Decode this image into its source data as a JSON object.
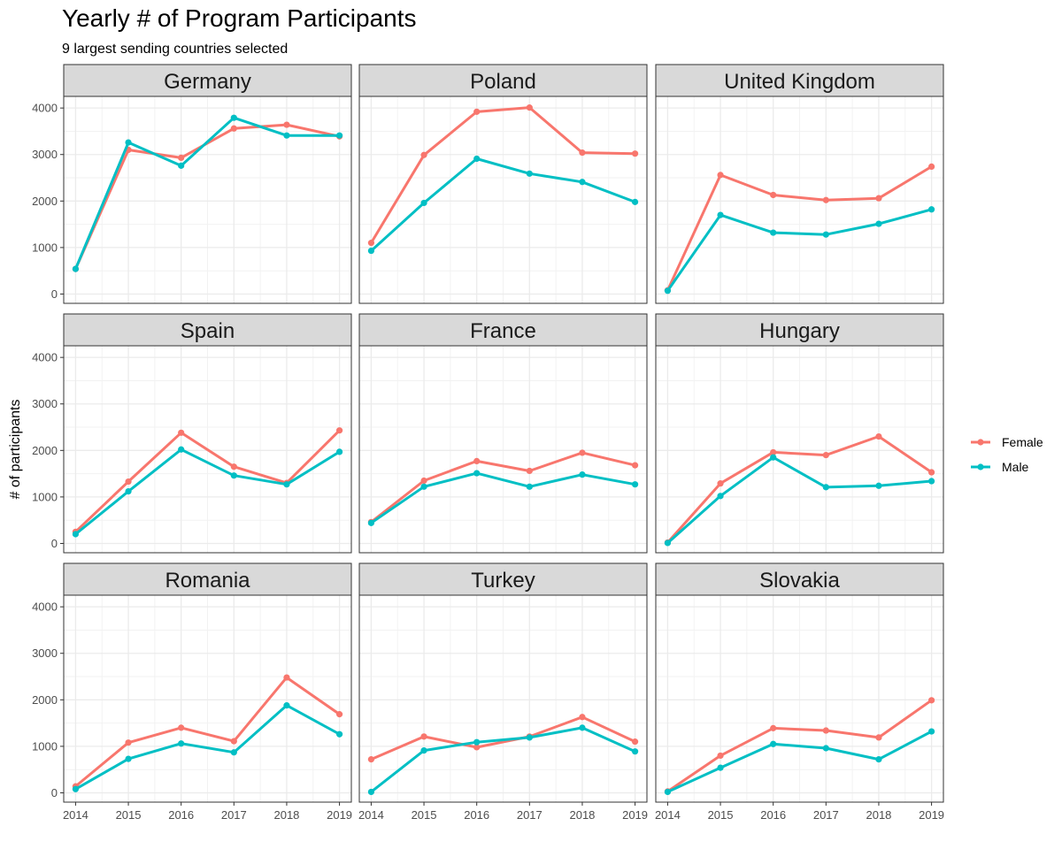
{
  "chart_data": {
    "type": "line",
    "title": "Yearly # of Program Participants",
    "subtitle": "9 largest sending countries selected",
    "xlabel": "",
    "ylabel": "# of participants",
    "x": [
      2014,
      2015,
      2016,
      2017,
      2018,
      2019
    ],
    "x_ticks": [
      "2014",
      "2015",
      "2016",
      "2017",
      "2018",
      "2019"
    ],
    "y_ticks": [
      0,
      1000,
      2000,
      3000,
      4000
    ],
    "ylim": [
      0,
      4250
    ],
    "grid": true,
    "legend": {
      "placement": "right",
      "entries": [
        {
          "name": "Female",
          "color": "#F8766D"
        },
        {
          "name": "Male",
          "color": "#00BFC4"
        }
      ]
    },
    "panels": [
      {
        "country": "Germany",
        "series": [
          {
            "name": "Female",
            "values": [
              540,
              3100,
              2930,
              3560,
              3640,
              3390
            ]
          },
          {
            "name": "Male",
            "values": [
              540,
              3260,
              2760,
              3790,
              3410,
              3410
            ]
          }
        ]
      },
      {
        "country": "Poland",
        "series": [
          {
            "name": "Female",
            "values": [
              1100,
              2990,
              3920,
              4010,
              3040,
              3020
            ]
          },
          {
            "name": "Male",
            "values": [
              930,
              1960,
              2910,
              2590,
              2410,
              1980
            ]
          }
        ]
      },
      {
        "country": "United Kingdom",
        "series": [
          {
            "name": "Female",
            "values": [
              80,
              2560,
              2130,
              2020,
              2060,
              2740
            ]
          },
          {
            "name": "Male",
            "values": [
              70,
              1700,
              1320,
              1280,
              1510,
              1820
            ]
          }
        ]
      },
      {
        "country": "Spain",
        "series": [
          {
            "name": "Female",
            "values": [
              250,
              1330,
              2380,
              1650,
              1300,
              2430
            ]
          },
          {
            "name": "Male",
            "values": [
              200,
              1120,
              2020,
              1460,
              1270,
              1970
            ]
          }
        ]
      },
      {
        "country": "France",
        "series": [
          {
            "name": "Female",
            "values": [
              460,
              1350,
              1770,
              1560,
              1950,
              1680
            ]
          },
          {
            "name": "Male",
            "values": [
              440,
              1220,
              1510,
              1220,
              1480,
              1270
            ]
          }
        ]
      },
      {
        "country": "Hungary",
        "series": [
          {
            "name": "Female",
            "values": [
              20,
              1290,
              1960,
              1900,
              2300,
              1530
            ]
          },
          {
            "name": "Male",
            "values": [
              10,
              1020,
              1850,
              1210,
              1240,
              1340
            ]
          }
        ]
      },
      {
        "country": "Romania",
        "series": [
          {
            "name": "Female",
            "values": [
              140,
              1080,
              1400,
              1110,
              2480,
              1690
            ]
          },
          {
            "name": "Male",
            "values": [
              80,
              730,
              1060,
              870,
              1880,
              1260
            ]
          }
        ]
      },
      {
        "country": "Turkey",
        "series": [
          {
            "name": "Female",
            "values": [
              720,
              1210,
              980,
              1210,
              1630,
              1100
            ]
          },
          {
            "name": "Male",
            "values": [
              20,
              910,
              1090,
              1190,
              1400,
              890
            ]
          }
        ]
      },
      {
        "country": "Slovakia",
        "series": [
          {
            "name": "Female",
            "values": [
              30,
              800,
              1390,
              1340,
              1190,
              1990
            ]
          },
          {
            "name": "Male",
            "values": [
              20,
              540,
              1050,
              960,
              720,
              1320
            ]
          }
        ]
      }
    ]
  }
}
